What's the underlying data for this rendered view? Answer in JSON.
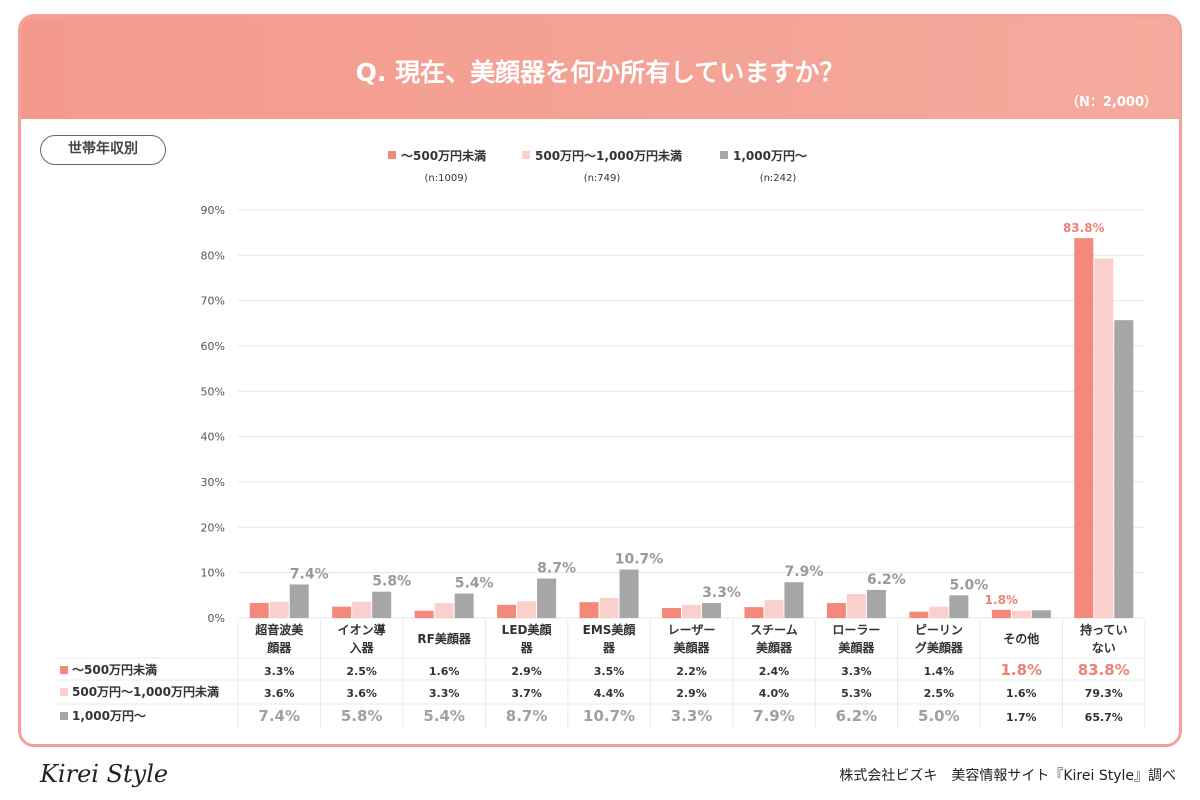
{
  "header": {
    "title": "Q. 現在、美顔器を何か所有していますか？",
    "sample": "（N：2,000）"
  },
  "tag": "世帯年収別",
  "footer": {
    "logo": "Kirei Style",
    "source": "株式会社ビズキ　美容情報サイト『Kirei Style』調べ"
  },
  "chart_data": {
    "type": "bar",
    "ylim": [
      0,
      90
    ],
    "yticks": [
      "0%",
      "10%",
      "20%",
      "30%",
      "40%",
      "50%",
      "60%",
      "70%",
      "80%",
      "90%"
    ],
    "grid": true,
    "legend_placement": "top",
    "categories": [
      [
        "超音波美",
        "顔器"
      ],
      [
        "イオン導",
        "入器"
      ],
      [
        "RF美顔器"
      ],
      [
        "LED美顔",
        "器"
      ],
      [
        "EMS美顔",
        "器"
      ],
      [
        "レーザー",
        "美顔器"
      ],
      [
        "スチーム",
        "美顔器"
      ],
      [
        "ローラー",
        "美顔器"
      ],
      [
        "ピーリン",
        "グ美顔器"
      ],
      [
        "その他"
      ],
      [
        "持ってい",
        "ない"
      ]
    ],
    "series": [
      {
        "name": "〜500万円未満",
        "n": "(n:1009)",
        "color": "#f4897b",
        "values": [
          3.3,
          2.5,
          1.6,
          2.9,
          3.5,
          2.2,
          2.4,
          3.3,
          1.4,
          1.8,
          83.8
        ]
      },
      {
        "name": "500万円〜1,000万円未満",
        "n": "(n:749)",
        "color": "#fbd0cc",
        "values": [
          3.6,
          3.6,
          3.3,
          3.7,
          4.4,
          2.9,
          4.0,
          5.3,
          2.5,
          1.6,
          79.3
        ]
      },
      {
        "name": "1,000万円〜",
        "n": "(n:242)",
        "color": "#a6a6a6",
        "values": [
          7.4,
          5.8,
          5.4,
          8.7,
          10.7,
          3.3,
          7.9,
          6.2,
          5.0,
          1.7,
          65.7
        ]
      }
    ],
    "highlight_color": "#f08073"
  }
}
